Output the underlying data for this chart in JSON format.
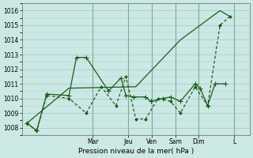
{
  "background_color": "#cce8e4",
  "grid_color": "#aacccc",
  "line_color": "#1a5c1a",
  "title": "Pression niveau de la mer( hPa )",
  "ylim": [
    1007.5,
    1016.5
  ],
  "yticks": [
    1008,
    1009,
    1010,
    1011,
    1012,
    1013,
    1014,
    1015,
    1016
  ],
  "day_labels": [
    "Mar",
    "Jeu",
    "Ven",
    "Sam",
    "Dim",
    "L"
  ],
  "day_positions": [
    0.286,
    0.429,
    0.524,
    0.619,
    0.714,
    0.857
  ],
  "xlim": [
    0.0,
    0.92
  ],
  "series1_x": [
    0.02,
    0.06,
    0.1,
    0.19,
    0.22,
    0.26,
    0.35,
    0.4,
    0.42,
    0.45,
    0.5,
    0.52,
    0.57,
    0.6,
    0.64,
    0.7,
    0.72,
    0.75,
    0.78,
    0.82
  ],
  "series1_y": [
    1008.3,
    1007.8,
    1010.3,
    1010.2,
    1012.8,
    1012.8,
    1010.5,
    1011.4,
    1010.2,
    1010.1,
    1010.1,
    1009.8,
    1010.0,
    1010.1,
    1009.8,
    1011.0,
    1010.7,
    1009.5,
    1011.0,
    1011.0
  ],
  "series2_x": [
    0.02,
    0.06,
    0.1,
    0.19,
    0.26,
    0.32,
    0.38,
    0.42,
    0.46,
    0.5,
    0.55,
    0.6,
    0.64,
    0.7,
    0.75,
    0.8,
    0.84
  ],
  "series2_y": [
    1008.3,
    1007.8,
    1010.2,
    1010.0,
    1009.0,
    1010.8,
    1009.5,
    1011.5,
    1008.6,
    1008.6,
    1010.0,
    1009.8,
    1009.0,
    1010.8,
    1009.5,
    1015.0,
    1015.6
  ],
  "series3_x": [
    0.02,
    0.19,
    0.46,
    0.64,
    0.8,
    0.84
  ],
  "series3_y": [
    1008.3,
    1010.7,
    1010.8,
    1014.0,
    1016.0,
    1015.6
  ]
}
